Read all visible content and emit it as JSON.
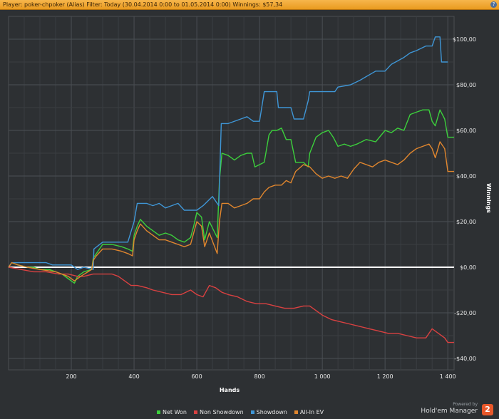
{
  "header": {
    "title": "Player: poker-chpoker (Alias) Filter: Today (30.04.2014 0:00 to 01.05.2014 0:00) Winnings: $57,34",
    "help_label": "?"
  },
  "branding": {
    "powered": "Powered by",
    "name": "Hold'em Manager",
    "logo": "2"
  },
  "chart_data": {
    "type": "line",
    "xlabel": "Hands",
    "ylabel": "Winnings",
    "xlim": [
      0,
      1420
    ],
    "ylim": [
      -45,
      110
    ],
    "x_ticks": [
      {
        "v": 200,
        "label": "200"
      },
      {
        "v": 400,
        "label": "400"
      },
      {
        "v": 600,
        "label": "600"
      },
      {
        "v": 800,
        "label": "800"
      },
      {
        "v": 1000,
        "label": "1 000"
      },
      {
        "v": 1200,
        "label": "1 200"
      },
      {
        "v": 1400,
        "label": "1 400"
      }
    ],
    "y_ticks": [
      {
        "v": 100,
        "label": "$100,00"
      },
      {
        "v": 80,
        "label": "$80,00"
      },
      {
        "v": 60,
        "label": "$60,00"
      },
      {
        "v": 40,
        "label": "$40,00"
      },
      {
        "v": 20,
        "label": "$20,00"
      },
      {
        "v": 0,
        "label": "$0,00"
      },
      {
        "v": -20,
        "label": "-$20,00"
      },
      {
        "v": -40,
        "label": "-$40,00"
      }
    ],
    "grid": true,
    "legend_position": "bottom",
    "series": [
      {
        "name": "Net Won",
        "color": "#3ccf3c",
        "points": [
          [
            0,
            0
          ],
          [
            10,
            2
          ],
          [
            30,
            1
          ],
          [
            60,
            0
          ],
          [
            80,
            0
          ],
          [
            100,
            -1
          ],
          [
            130,
            -1
          ],
          [
            150,
            -2
          ],
          [
            170,
            -3
          ],
          [
            190,
            -5
          ],
          [
            210,
            -7
          ],
          [
            220,
            -4
          ],
          [
            240,
            -2
          ],
          [
            265,
            -1
          ],
          [
            270,
            4
          ],
          [
            280,
            6
          ],
          [
            300,
            10
          ],
          [
            330,
            10
          ],
          [
            360,
            9
          ],
          [
            380,
            8
          ],
          [
            395,
            7
          ],
          [
            400,
            14
          ],
          [
            410,
            18
          ],
          [
            420,
            21
          ],
          [
            440,
            18
          ],
          [
            460,
            16
          ],
          [
            480,
            14
          ],
          [
            500,
            15
          ],
          [
            520,
            14
          ],
          [
            540,
            12
          ],
          [
            560,
            11
          ],
          [
            580,
            13
          ],
          [
            590,
            18
          ],
          [
            600,
            24
          ],
          [
            615,
            22
          ],
          [
            625,
            12
          ],
          [
            640,
            20
          ],
          [
            665,
            13
          ],
          [
            672,
            38
          ],
          [
            680,
            50
          ],
          [
            700,
            49
          ],
          [
            720,
            47
          ],
          [
            740,
            49
          ],
          [
            760,
            50
          ],
          [
            775,
            50
          ],
          [
            785,
            44
          ],
          [
            800,
            45
          ],
          [
            815,
            46
          ],
          [
            830,
            58
          ],
          [
            840,
            60
          ],
          [
            855,
            60
          ],
          [
            870,
            61
          ],
          [
            885,
            56
          ],
          [
            900,
            56
          ],
          [
            915,
            46
          ],
          [
            940,
            46
          ],
          [
            955,
            44
          ],
          [
            960,
            50
          ],
          [
            980,
            57
          ],
          [
            1000,
            59
          ],
          [
            1020,
            60
          ],
          [
            1035,
            57
          ],
          [
            1050,
            53
          ],
          [
            1070,
            54
          ],
          [
            1090,
            53
          ],
          [
            1110,
            54
          ],
          [
            1140,
            56
          ],
          [
            1170,
            55
          ],
          [
            1200,
            60
          ],
          [
            1220,
            59
          ],
          [
            1240,
            61
          ],
          [
            1260,
            60
          ],
          [
            1280,
            67
          ],
          [
            1300,
            68
          ],
          [
            1320,
            69
          ],
          [
            1340,
            69
          ],
          [
            1350,
            64
          ],
          [
            1360,
            62
          ],
          [
            1375,
            69
          ],
          [
            1390,
            65
          ],
          [
            1400,
            57
          ],
          [
            1420,
            57
          ]
        ]
      },
      {
        "name": "Non Showdown",
        "color": "#d94141",
        "points": [
          [
            0,
            0
          ],
          [
            40,
            -1
          ],
          [
            80,
            -2
          ],
          [
            120,
            -2
          ],
          [
            160,
            -3
          ],
          [
            190,
            -3
          ],
          [
            220,
            -4
          ],
          [
            240,
            -4
          ],
          [
            270,
            -3
          ],
          [
            300,
            -3
          ],
          [
            330,
            -3
          ],
          [
            350,
            -4
          ],
          [
            370,
            -6
          ],
          [
            390,
            -8
          ],
          [
            410,
            -8
          ],
          [
            440,
            -9
          ],
          [
            460,
            -10
          ],
          [
            490,
            -11
          ],
          [
            520,
            -12
          ],
          [
            550,
            -12
          ],
          [
            580,
            -10
          ],
          [
            600,
            -12
          ],
          [
            620,
            -13
          ],
          [
            640,
            -8
          ],
          [
            660,
            -9
          ],
          [
            680,
            -11
          ],
          [
            700,
            -12
          ],
          [
            730,
            -13
          ],
          [
            760,
            -15
          ],
          [
            790,
            -16
          ],
          [
            820,
            -16
          ],
          [
            850,
            -17
          ],
          [
            880,
            -18
          ],
          [
            910,
            -18
          ],
          [
            940,
            -17
          ],
          [
            960,
            -17
          ],
          [
            980,
            -19
          ],
          [
            1000,
            -21
          ],
          [
            1030,
            -23
          ],
          [
            1060,
            -24
          ],
          [
            1090,
            -25
          ],
          [
            1120,
            -26
          ],
          [
            1150,
            -27
          ],
          [
            1180,
            -28
          ],
          [
            1210,
            -29
          ],
          [
            1240,
            -29
          ],
          [
            1270,
            -30
          ],
          [
            1300,
            -31
          ],
          [
            1330,
            -31
          ],
          [
            1350,
            -27
          ],
          [
            1370,
            -29
          ],
          [
            1390,
            -31
          ],
          [
            1400,
            -33
          ],
          [
            1420,
            -33
          ]
        ]
      },
      {
        "name": "Showdown",
        "color": "#3f96d6",
        "points": [
          [
            0,
            0
          ],
          [
            10,
            2
          ],
          [
            120,
            2
          ],
          [
            140,
            1
          ],
          [
            200,
            1
          ],
          [
            220,
            -1
          ],
          [
            240,
            0
          ],
          [
            270,
            -1
          ],
          [
            272,
            8
          ],
          [
            300,
            11
          ],
          [
            380,
            11
          ],
          [
            400,
            20
          ],
          [
            410,
            28
          ],
          [
            440,
            28
          ],
          [
            460,
            27
          ],
          [
            480,
            28
          ],
          [
            500,
            26
          ],
          [
            520,
            27
          ],
          [
            540,
            28
          ],
          [
            560,
            25
          ],
          [
            600,
            25
          ],
          [
            620,
            27
          ],
          [
            650,
            31
          ],
          [
            670,
            27
          ],
          [
            678,
            63
          ],
          [
            700,
            63
          ],
          [
            740,
            65
          ],
          [
            760,
            66
          ],
          [
            780,
            64
          ],
          [
            800,
            64
          ],
          [
            815,
            77
          ],
          [
            855,
            77
          ],
          [
            860,
            70
          ],
          [
            900,
            70
          ],
          [
            910,
            65
          ],
          [
            940,
            65
          ],
          [
            955,
            73
          ],
          [
            960,
            77
          ],
          [
            1000,
            77
          ],
          [
            1040,
            77
          ],
          [
            1050,
            79
          ],
          [
            1090,
            80
          ],
          [
            1120,
            82
          ],
          [
            1170,
            86
          ],
          [
            1200,
            86
          ],
          [
            1220,
            89
          ],
          [
            1260,
            92
          ],
          [
            1280,
            94
          ],
          [
            1300,
            95
          ],
          [
            1330,
            97
          ],
          [
            1350,
            97
          ],
          [
            1360,
            101
          ],
          [
            1375,
            101
          ],
          [
            1380,
            90
          ],
          [
            1400,
            90
          ]
        ]
      },
      {
        "name": "All-In EV",
        "color": "#e0862e",
        "points": [
          [
            0,
            0
          ],
          [
            10,
            2
          ],
          [
            30,
            1
          ],
          [
            60,
            0
          ],
          [
            100,
            -1
          ],
          [
            150,
            -2
          ],
          [
            190,
            -4
          ],
          [
            210,
            -6
          ],
          [
            230,
            -4
          ],
          [
            265,
            -1
          ],
          [
            270,
            3
          ],
          [
            280,
            5
          ],
          [
            300,
            8
          ],
          [
            330,
            8
          ],
          [
            360,
            7
          ],
          [
            380,
            6
          ],
          [
            395,
            5
          ],
          [
            400,
            12
          ],
          [
            410,
            16
          ],
          [
            420,
            19
          ],
          [
            440,
            16
          ],
          [
            460,
            14
          ],
          [
            480,
            12
          ],
          [
            500,
            12
          ],
          [
            520,
            11
          ],
          [
            540,
            10
          ],
          [
            560,
            9
          ],
          [
            580,
            10
          ],
          [
            590,
            15
          ],
          [
            600,
            20
          ],
          [
            615,
            18
          ],
          [
            625,
            9
          ],
          [
            640,
            15
          ],
          [
            665,
            6
          ],
          [
            672,
            20
          ],
          [
            680,
            28
          ],
          [
            700,
            28
          ],
          [
            720,
            26
          ],
          [
            740,
            27
          ],
          [
            760,
            28
          ],
          [
            780,
            30
          ],
          [
            800,
            30
          ],
          [
            815,
            33
          ],
          [
            830,
            35
          ],
          [
            850,
            36
          ],
          [
            870,
            36
          ],
          [
            885,
            38
          ],
          [
            900,
            37
          ],
          [
            915,
            42
          ],
          [
            940,
            45
          ],
          [
            960,
            44
          ],
          [
            980,
            41
          ],
          [
            1000,
            39
          ],
          [
            1020,
            40
          ],
          [
            1040,
            39
          ],
          [
            1060,
            40
          ],
          [
            1080,
            39
          ],
          [
            1100,
            43
          ],
          [
            1120,
            46
          ],
          [
            1140,
            45
          ],
          [
            1160,
            44
          ],
          [
            1180,
            46
          ],
          [
            1200,
            47
          ],
          [
            1220,
            46
          ],
          [
            1240,
            45
          ],
          [
            1260,
            47
          ],
          [
            1280,
            50
          ],
          [
            1300,
            52
          ],
          [
            1320,
            53
          ],
          [
            1340,
            54
          ],
          [
            1350,
            52
          ],
          [
            1360,
            48
          ],
          [
            1375,
            55
          ],
          [
            1390,
            52
          ],
          [
            1400,
            42
          ],
          [
            1420,
            42
          ]
        ]
      }
    ]
  }
}
